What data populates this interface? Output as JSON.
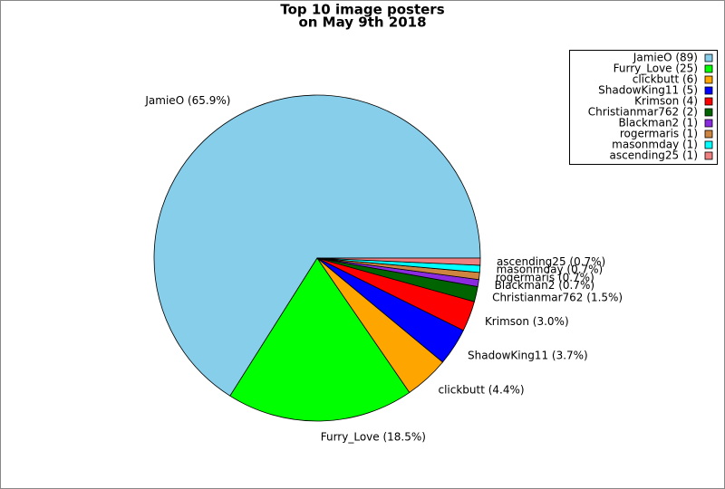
{
  "chart_data": {
    "type": "pie",
    "title": [
      "Top 10 image posters",
      "on May 9th 2018"
    ],
    "categories": [
      "JamieO (89)",
      "Furry_Love (25)",
      "clickbutt (6)",
      "ShadowKing11 (5)",
      "Krimson (4)",
      "Christianmar762 (2)",
      "Blackman2 (1)",
      "rogermaris (1)",
      "masonmday (1)",
      "ascending25 (1)"
    ],
    "values": [
      65.9,
      18.5,
      4.4,
      3.7,
      3.0,
      1.5,
      0.7,
      0.7,
      0.7,
      0.7
    ],
    "value_labels": [
      "JamieO (65.9%)",
      "Furry_Love (18.5%)",
      "clickbutt (4.4%)",
      "ShadowKing11 (3.7%)",
      "Krimson (3.0%)",
      "Christianmar762 (1.5%)",
      "Blackman2 (0.7%)",
      "rogermaris (0.7%)",
      "masonmday (0.7%)",
      "ascending25 (0.7%)"
    ],
    "colors": [
      "#87ceeb",
      "#00ff00",
      "#ffa500",
      "#0000ff",
      "#ff0000",
      "#006400",
      "#8a2be2",
      "#cd853f",
      "#00ffff",
      "#f08080"
    ],
    "legend": "upper right"
  }
}
